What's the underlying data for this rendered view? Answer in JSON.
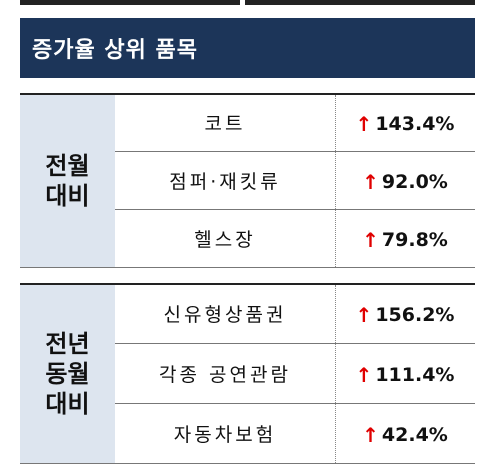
{
  "header": {
    "title": "증가율 상위 품목"
  },
  "table": {
    "groups": [
      {
        "label": [
          "전월",
          "대비"
        ],
        "rows": [
          [
            "코트",
            "143.4%"
          ],
          [
            "점퍼·재킷류",
            "92.0%"
          ],
          [
            "헬스장",
            "79.8%"
          ]
        ]
      },
      {
        "label": [
          "전년",
          "동월",
          "대비"
        ],
        "rows": [
          [
            "신유형상품권",
            "156.2%"
          ],
          [
            "각종 공연관람",
            "111.4%"
          ],
          [
            "자동차보험",
            "42.4%"
          ]
        ]
      }
    ]
  }
}
